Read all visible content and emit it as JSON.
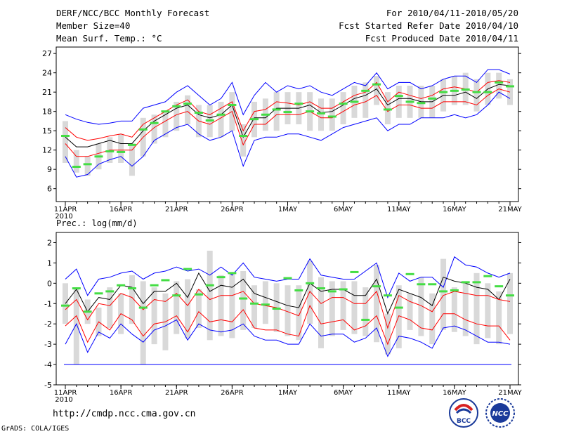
{
  "header": {
    "title": "DERF/NCC/BCC Monthly Forecast",
    "member_size": "Member Size=40",
    "variable": "Mean Surf. Temp.: °C",
    "forecast_period": "For 2010/04/11-2010/05/20",
    "started_date": "Fcst Started Refer Date 2010/04/10",
    "produced_date": "Fcst Produced Date 2010/04/11"
  },
  "footer": {
    "url": "http://cmdp.ncc.cma.gov.cn",
    "credit": "GrADS: COLA/IGES",
    "logo_bcc": "BCC",
    "logo_ncc": "NCC"
  },
  "colors": {
    "upper": "#0000ff",
    "mid": "#ff0000",
    "mean": "#000000",
    "box": "#d9d9d9",
    "obs": "#44dd44",
    "floor": "#0000ff"
  },
  "chart_data": [
    {
      "type": "line",
      "title": "Mean Surf. Temp.: °C",
      "x_tick_labels": [
        "11APR",
        "16APR",
        "21APR",
        "26APR",
        "1MAY",
        "6MAY",
        "11MAY",
        "16MAY",
        "21MAY"
      ],
      "x_year_label": "2010",
      "ylim": [
        4,
        28
      ],
      "y_ticks": [
        6,
        9,
        12,
        15,
        18,
        21,
        24,
        27
      ],
      "x_days": 41,
      "series": [
        {
          "name": "upper",
          "values": [
            17.5,
            16.8,
            16.3,
            16.0,
            16.2,
            16.5,
            16.5,
            18.5,
            19.0,
            19.5,
            21.0,
            22.0,
            20.5,
            19.0,
            20.0,
            22.5,
            17.5,
            20.5,
            22.5,
            21.0,
            22.0,
            21.5,
            22.0,
            21.0,
            20.5,
            21.5,
            22.5,
            22.0,
            24.0,
            21.5,
            22.5,
            22.5,
            21.5,
            22.0,
            23.0,
            23.5,
            23.5,
            22.5,
            24.5,
            24.5,
            23.8
          ]
        },
        {
          "name": "mid_upper",
          "values": [
            15.5,
            14.0,
            13.5,
            13.8,
            14.2,
            14.5,
            14.0,
            16.0,
            17.0,
            18.0,
            19.0,
            19.8,
            18.0,
            17.5,
            18.5,
            19.5,
            15.0,
            18.0,
            18.3,
            19.5,
            19.3,
            19.0,
            19.5,
            18.5,
            18.5,
            19.5,
            20.5,
            21.0,
            22.5,
            19.5,
            21.0,
            20.5,
            20.0,
            20.5,
            21.5,
            21.8,
            21.5,
            21.0,
            22.5,
            22.8,
            22.5
          ]
        },
        {
          "name": "mean",
          "values": [
            14.0,
            12.5,
            12.5,
            13.0,
            13.5,
            13.0,
            13.0,
            15.0,
            16.5,
            17.5,
            18.5,
            19.0,
            17.5,
            17.0,
            17.5,
            19.0,
            14.0,
            17.0,
            17.0,
            18.5,
            18.5,
            18.5,
            19.0,
            17.8,
            18.0,
            19.0,
            20.0,
            20.5,
            21.5,
            19.0,
            20.0,
            20.0,
            19.5,
            19.5,
            20.5,
            20.5,
            21.0,
            20.0,
            21.5,
            22.2,
            22.0
          ]
        },
        {
          "name": "mid_lower",
          "values": [
            13.0,
            11.0,
            11.0,
            11.5,
            12.0,
            12.0,
            12.0,
            14.0,
            15.5,
            16.5,
            17.5,
            18.0,
            16.5,
            16.0,
            17.0,
            18.0,
            12.8,
            16.0,
            16.0,
            17.5,
            17.5,
            17.5,
            18.0,
            17.0,
            17.0,
            18.0,
            19.0,
            19.5,
            20.5,
            18.0,
            19.0,
            19.0,
            18.5,
            18.5,
            19.5,
            19.5,
            19.5,
            19.0,
            20.5,
            21.5,
            21.0
          ]
        },
        {
          "name": "lower",
          "values": [
            11.0,
            7.8,
            8.2,
            9.8,
            10.5,
            11.0,
            9.5,
            11.0,
            13.5,
            14.5,
            15.5,
            16.0,
            14.5,
            13.5,
            14.0,
            15.0,
            9.5,
            13.5,
            14.0,
            14.0,
            14.5,
            14.5,
            14.0,
            13.5,
            14.5,
            15.5,
            16.0,
            16.5,
            17.0,
            15.0,
            16.0,
            16.0,
            17.0,
            17.0,
            17.0,
            17.5,
            17.0,
            17.5,
            19.0,
            21.0,
            20.0
          ]
        }
      ],
      "boxes": [
        [
          10,
          16.5
        ],
        [
          8.5,
          12
        ],
        [
          8,
          11
        ],
        [
          9,
          13
        ],
        [
          10,
          14
        ],
        [
          10,
          14.5
        ],
        [
          8,
          13
        ],
        [
          11,
          17
        ],
        [
          13,
          17.5
        ],
        [
          14,
          18
        ],
        [
          15,
          19.5
        ],
        [
          16,
          20.5
        ],
        [
          14,
          19
        ],
        [
          14,
          19
        ],
        [
          14,
          19.5
        ],
        [
          15,
          21
        ],
        [
          11,
          16
        ],
        [
          14,
          19.5
        ],
        [
          15,
          20
        ],
        [
          15,
          21
        ],
        [
          16,
          21
        ],
        [
          16,
          21
        ],
        [
          15,
          21
        ],
        [
          15,
          20
        ],
        [
          15,
          20
        ],
        [
          16,
          21
        ],
        [
          17,
          22
        ],
        [
          17,
          22.5
        ],
        [
          19,
          23.5
        ],
        [
          16,
          21
        ],
        [
          17,
          22
        ],
        [
          17,
          22
        ],
        [
          17,
          22
        ],
        [
          17,
          22
        ],
        [
          18,
          23
        ],
        [
          19,
          23.5
        ],
        [
          19,
          24
        ],
        [
          18,
          23
        ],
        [
          19,
          24
        ],
        [
          20,
          24
        ],
        [
          19,
          23
        ]
      ],
      "observed": [
        14.2,
        9.4,
        9.8,
        11.0,
        11.8,
        11.7,
        12.8,
        15.2,
        16.2,
        18.0,
        18.8,
        19.2,
        17.8,
        16.6,
        17.5,
        19.0,
        14.2,
        16.8,
        17.5,
        18.3,
        17.9,
        19.2,
        18.0,
        17.7,
        17.2,
        19.2,
        19.5,
        21.2,
        22.2,
        18.3,
        20.4,
        19.5,
        19.3,
        20.0,
        21.0,
        21.2,
        21.4,
        21.0,
        21.0,
        22.5,
        21.9
      ]
    },
    {
      "type": "line",
      "title": "Prec.: log(mm/d)",
      "x_tick_labels": [
        "11APR",
        "16APR",
        "21APR",
        "26APR",
        "1MAY",
        "6MAY",
        "11MAY",
        "16MAY",
        "21MAY"
      ],
      "x_year_label": "2010",
      "ylim": [
        -5,
        2.5
      ],
      "y_ticks": [
        -5,
        -4,
        -3,
        -2,
        -1,
        0,
        1,
        2
      ],
      "floor_value": -4,
      "x_days": 41,
      "series": [
        {
          "name": "upper",
          "values": [
            0.2,
            0.7,
            -0.6,
            0.2,
            0.3,
            0.5,
            0.6,
            0.2,
            0.5,
            0.6,
            0.8,
            0.6,
            0.7,
            0.4,
            0.8,
            0.4,
            1.0,
            0.3,
            0.2,
            0.1,
            0.2,
            0.2,
            1.2,
            0.4,
            0.3,
            0.2,
            0.2,
            0.6,
            1.0,
            -0.7,
            0.5,
            0.1,
            0.3,
            0.3,
            -0.2,
            1.3,
            0.9,
            0.8,
            0.5,
            0.3,
            0.5
          ]
        },
        {
          "name": "mean",
          "values": [
            -1.0,
            -0.3,
            -1.4,
            -0.7,
            -0.8,
            -0.1,
            -0.2,
            -1.0,
            -0.4,
            -0.4,
            0.0,
            -0.7,
            0.5,
            -0.4,
            -0.1,
            -0.2,
            0.2,
            -0.5,
            -0.7,
            -0.9,
            -1.1,
            -1.2,
            0.0,
            -0.4,
            -0.3,
            -0.3,
            -0.6,
            -0.6,
            0.2,
            -1.5,
            -0.3,
            -0.5,
            -0.7,
            -1.1,
            0.3,
            0.1,
            0.0,
            -0.2,
            -0.3,
            -0.8,
            0.2
          ]
        },
        {
          "name": "mid_upper",
          "values": [
            -1.3,
            -0.8,
            -1.8,
            -1.0,
            -1.1,
            -0.5,
            -0.7,
            -1.3,
            -0.8,
            -0.9,
            -0.5,
            -1.1,
            -0.3,
            -0.8,
            -0.6,
            -0.6,
            -0.4,
            -1.0,
            -1.1,
            -1.2,
            -1.4,
            -1.6,
            -0.4,
            -1.0,
            -0.7,
            -0.7,
            -1.0,
            -1.0,
            -0.4,
            -2.2,
            -0.6,
            -0.9,
            -1.1,
            -1.4,
            -0.6,
            -0.4,
            -0.5,
            -0.6,
            -0.6,
            -0.8,
            -0.9
          ]
        },
        {
          "name": "mid_lower",
          "values": [
            -2.1,
            -1.6,
            -2.9,
            -1.9,
            -2.3,
            -1.5,
            -1.8,
            -2.6,
            -2.0,
            -1.9,
            -1.6,
            -2.4,
            -1.4,
            -1.9,
            -1.8,
            -1.9,
            -1.3,
            -2.2,
            -2.3,
            -2.3,
            -2.5,
            -2.6,
            -1.1,
            -2.0,
            -1.9,
            -1.8,
            -2.3,
            -2.1,
            -1.6,
            -3.0,
            -1.6,
            -1.8,
            -2.2,
            -2.3,
            -1.5,
            -1.5,
            -1.8,
            -2.0,
            -2.1,
            -2.1,
            -2.8
          ]
        },
        {
          "name": "lower",
          "values": [
            -3.0,
            -2.0,
            -3.4,
            -2.4,
            -2.7,
            -2.0,
            -2.5,
            -2.9,
            -2.3,
            -2.1,
            -1.8,
            -2.8,
            -2.0,
            -2.3,
            -2.4,
            -2.3,
            -2.0,
            -2.6,
            -2.8,
            -2.8,
            -3.0,
            -3.0,
            -2.0,
            -2.6,
            -2.5,
            -2.5,
            -2.9,
            -2.7,
            -2.2,
            -3.6,
            -2.6,
            -2.7,
            -2.9,
            -3.2,
            -2.2,
            -2.1,
            -2.3,
            -2.6,
            -2.9,
            -2.9,
            -3.0
          ]
        }
      ],
      "boxes": [
        [
          -2.0,
          0.0
        ],
        [
          -4.0,
          -0.2
        ],
        [
          -2.0,
          -0.8
        ],
        [
          -2.6,
          -1.2
        ],
        [
          -2.2,
          -0.2
        ],
        [
          -2.5,
          -0.5
        ],
        [
          -2.0,
          0.4
        ],
        [
          -4.0,
          0.1
        ],
        [
          -3.0,
          -0.2
        ],
        [
          -3.3,
          -0.5
        ],
        [
          -2.5,
          0.1
        ],
        [
          -2.7,
          0.2
        ],
        [
          -2.2,
          -0.3
        ],
        [
          -2.8,
          1.6
        ],
        [
          -2.6,
          0.4
        ],
        [
          -2.7,
          0.5
        ],
        [
          -2.3,
          0.6
        ],
        [
          -2.2,
          -0.1
        ],
        [
          -2.0,
          0.1
        ],
        [
          -2.4,
          0.0
        ],
        [
          -2.6,
          -0.1
        ],
        [
          -2.8,
          -0.1
        ],
        [
          -2.0,
          1.1
        ],
        [
          -3.2,
          0.3
        ],
        [
          -2.6,
          0.1
        ],
        [
          -2.3,
          0.1
        ],
        [
          -2.5,
          0.1
        ],
        [
          -2.6,
          -0.2
        ],
        [
          -2.9,
          0.9
        ],
        [
          -3.5,
          -1.5
        ],
        [
          -3.2,
          -0.1
        ],
        [
          -2.3,
          -0.5
        ],
        [
          -2.6,
          0.3
        ],
        [
          -3.0,
          -0.5
        ],
        [
          -2.3,
          1.2
        ],
        [
          -2.4,
          -0.2
        ],
        [
          -2.6,
          0.0
        ],
        [
          -3.0,
          0.5
        ],
        [
          -2.7,
          0.0
        ],
        [
          -3.0,
          -0.4
        ],
        [
          -2.5,
          0.5
        ]
      ],
      "observed": [
        -1.1,
        -0.25,
        -1.4,
        -0.5,
        -0.4,
        -0.1,
        -0.25,
        -1.2,
        -0.1,
        0.15,
        -0.6,
        0.7,
        -0.55,
        -0.1,
        0.3,
        0.5,
        -0.75,
        -1.0,
        -1.05,
        -1.25,
        0.25,
        -0.35,
        0.0,
        -0.25,
        -0.4,
        -0.3,
        0.55,
        -1.8,
        -0.15,
        -0.6,
        -1.2,
        0.45,
        -0.05,
        -0.05,
        -0.4,
        -0.35,
        0.05,
        0.05,
        0.35,
        -0.15,
        -0.6
      ]
    }
  ]
}
